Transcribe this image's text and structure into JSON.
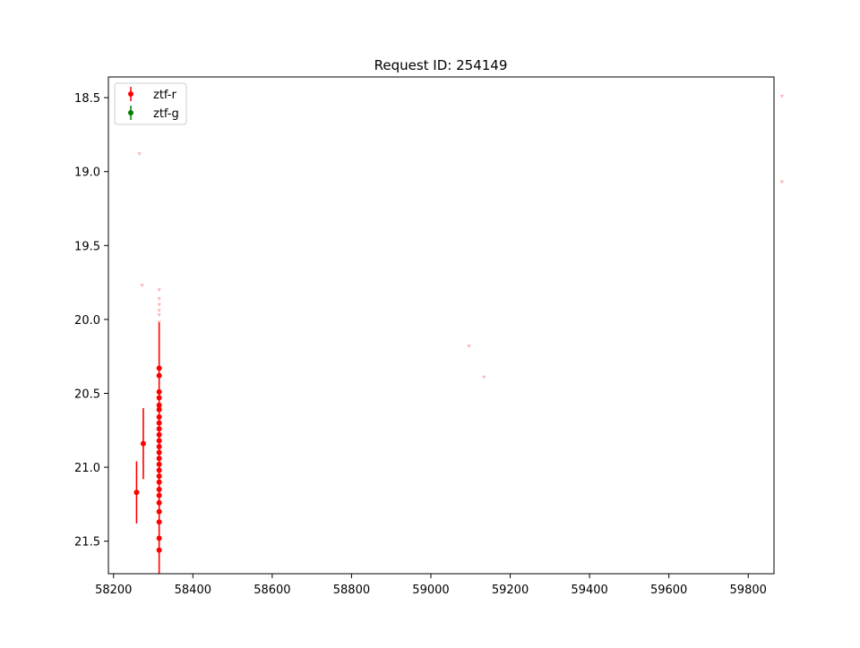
{
  "chart_data": {
    "type": "scatter",
    "title": "Request ID: 254149",
    "xlabel": "",
    "ylabel": "",
    "xlim": [
      58187,
      59865
    ],
    "ylim": [
      21.72,
      18.36
    ],
    "y_inverted": true,
    "grid": false,
    "legend_position": "upper-left",
    "x_ticks": [
      58200,
      58400,
      58600,
      58800,
      59000,
      59200,
      59400,
      59600,
      59800
    ],
    "x_tick_labels": [
      "58200",
      "58400",
      "58600",
      "58800",
      "59000",
      "59200",
      "59400",
      "59600",
      "59800"
    ],
    "y_ticks": [
      18.5,
      19.0,
      19.5,
      20.0,
      20.5,
      21.0,
      21.5
    ],
    "y_tick_labels": [
      "18.5",
      "19.0",
      "19.5",
      "20.0",
      "20.5",
      "21.0",
      "21.5"
    ],
    "series": [
      {
        "name": "ztf-r",
        "color": "#ff0000",
        "points": [
          {
            "x": 58258,
            "y": 21.17,
            "err": 0.21
          },
          {
            "x": 58275,
            "y": 20.84,
            "err": 0.24
          },
          {
            "x": 58315,
            "y": 20.33,
            "err": 0.0
          },
          {
            "x": 58315,
            "y": 20.38,
            "err": 0.0
          },
          {
            "x": 58315,
            "y": 20.49,
            "err": 0.0
          },
          {
            "x": 58315,
            "y": 20.53,
            "err": 0.0
          },
          {
            "x": 58315,
            "y": 20.58,
            "err": 0.0
          },
          {
            "x": 58315,
            "y": 20.61,
            "err": 0.0
          },
          {
            "x": 58315,
            "y": 20.66,
            "err": 0.0
          },
          {
            "x": 58315,
            "y": 20.7,
            "err": 0.0
          },
          {
            "x": 58315,
            "y": 20.74,
            "err": 0.0
          },
          {
            "x": 58315,
            "y": 20.78,
            "err": 0.0
          },
          {
            "x": 58315,
            "y": 20.82,
            "err": 0.0
          },
          {
            "x": 58315,
            "y": 20.86,
            "err": 0.0
          },
          {
            "x": 58315,
            "y": 20.9,
            "err": 0.0
          },
          {
            "x": 58315,
            "y": 20.94,
            "err": 0.0
          },
          {
            "x": 58315,
            "y": 20.98,
            "err": 0.0
          },
          {
            "x": 58315,
            "y": 21.02,
            "err": 0.0
          },
          {
            "x": 58315,
            "y": 21.06,
            "err": 0.0
          },
          {
            "x": 58315,
            "y": 21.1,
            "err": 0.0
          },
          {
            "x": 58315,
            "y": 21.15,
            "err": 0.0
          },
          {
            "x": 58315,
            "y": 21.19,
            "err": 0.0
          },
          {
            "x": 58315,
            "y": 21.24,
            "err": 0.0
          },
          {
            "x": 58315,
            "y": 21.3,
            "err": 0.0
          },
          {
            "x": 58315,
            "y": 21.37,
            "err": 0.0
          },
          {
            "x": 58315,
            "y": 21.48,
            "err": 0.0
          },
          {
            "x": 58315,
            "y": 21.56,
            "err": 0.0
          }
        ],
        "column_error_range": {
          "x": 58315,
          "y_low": 20.02,
          "y_high": 21.72
        }
      },
      {
        "name": "ztf-g",
        "color": "#008000",
        "points": []
      }
    ],
    "upper_limits": {
      "color": "#ff9999",
      "marker": "down-triangle",
      "points": [
        {
          "x": 58265,
          "y": 18.88
        },
        {
          "x": 58272,
          "y": 19.77
        },
        {
          "x": 58315,
          "y": 19.8
        },
        {
          "x": 58315,
          "y": 19.86
        },
        {
          "x": 58315,
          "y": 19.9
        },
        {
          "x": 58315,
          "y": 19.94
        },
        {
          "x": 58315,
          "y": 19.97
        },
        {
          "x": 58315,
          "y": 20.02
        },
        {
          "x": 59096,
          "y": 20.18
        },
        {
          "x": 59134,
          "y": 20.39
        },
        {
          "x": 59885,
          "y": 18.49
        },
        {
          "x": 59885,
          "y": 19.07
        }
      ]
    }
  }
}
